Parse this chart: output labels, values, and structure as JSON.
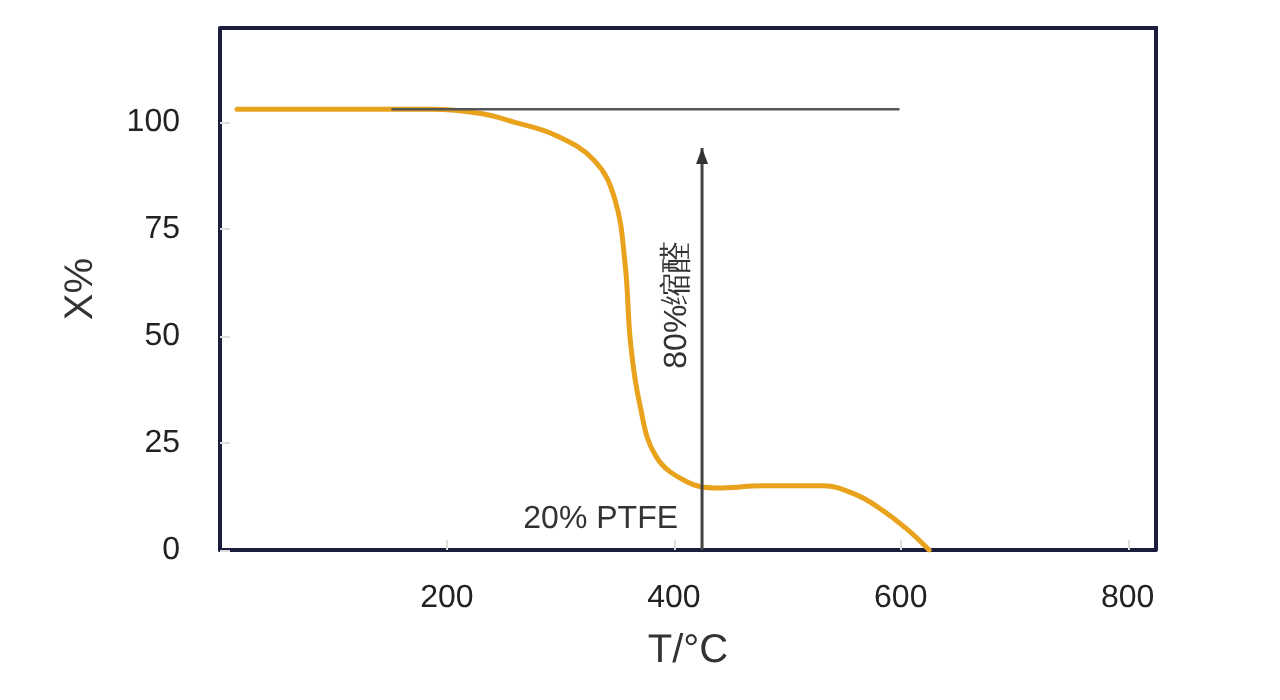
{
  "chart_data": {
    "type": "line",
    "xlabel": "T/°C",
    "ylabel": "X%",
    "x": [
      15,
      100,
      187,
      230,
      259,
      295,
      330,
      348,
      357,
      362,
      370,
      384,
      411,
      437,
      480,
      532,
      560,
      580,
      605,
      625
    ],
    "series": [
      {
        "color": "#e8a21c",
        "values": [
          103,
          103,
          103,
          102,
          100,
          97,
          91,
          82,
          67,
          48,
          34,
          22,
          16,
          14.5,
          15,
          15,
          13,
          10,
          5,
          0
        ]
      },
      {
        "type": "line",
        "color": "#555555",
        "x": [
          152,
          598
        ],
        "values": [
          103,
          103
        ]
      }
    ],
    "xlim": [
      0,
      825
    ],
    "xticks": [
      200,
      400,
      600,
      800
    ],
    "ylim": [
      0,
      122
    ],
    "yticks": [
      0,
      25,
      50,
      75,
      100
    ],
    "grid": false,
    "marker": "none",
    "line_style": "solid",
    "annotations": [
      "80%缩醛",
      "20% PTFE"
    ]
  }
}
